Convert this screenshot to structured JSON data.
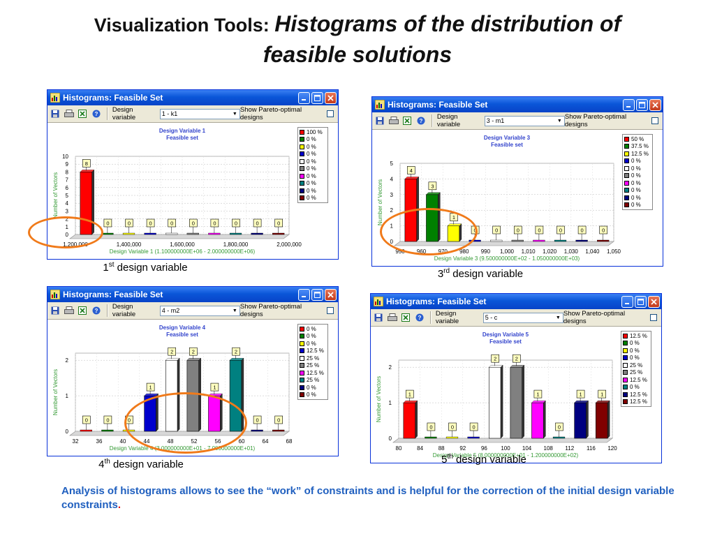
{
  "title": {
    "plain": "Visualization Tools: ",
    "italic_1": "Histograms of the distribution of",
    "italic_2": "feasible solutions"
  },
  "colors": {
    "accent_ring": "#f07a1a",
    "footer_text": "#1f5fbf",
    "footer_dot": "#ee0000",
    "axis_label": "#339933",
    "chart_title": "#3344cc"
  },
  "window_common": {
    "title": "Histograms: Feasible Set",
    "dv_label": "Design variable",
    "pareto_label": "Show Pareto-optimal designs",
    "y_axis_label": "Number of Vectors",
    "chart_subtitle": "Feasible set",
    "icons": [
      "save-icon",
      "print-icon",
      "export-excel-icon",
      "help-icon"
    ]
  },
  "windows": [
    {
      "selected": "1 - k1",
      "caption_num": "1",
      "caption_sup": "st",
      "caption_rest": " design variable",
      "chart_data": {
        "type": "bar",
        "title": "Design Variable 1",
        "subtitle": "Feasible set",
        "ylabel": "Number of Vectors",
        "xlabel": "Design Variable 1 (1.100000000E+06  -  2.000000000E+06)",
        "ylim": [
          0,
          10
        ],
        "yticks": [
          0,
          1,
          2,
          3,
          4,
          5,
          6,
          7,
          8,
          9,
          10
        ],
        "xticks": [
          "1,200,000",
          "1,400,000",
          "1,600,000",
          "1,800,000",
          "2,000,000"
        ],
        "values": [
          8,
          0,
          0,
          0,
          0,
          0,
          0,
          0,
          0,
          0
        ],
        "bar_colors": [
          "#ff0000",
          "#008000",
          "#ffff00",
          "#0000cc",
          "#ffffff",
          "#808080",
          "#ff00ff",
          "#008080",
          "#000080",
          "#800000"
        ],
        "legend": [
          "100 %",
          "0 %",
          "0 %",
          "0 %",
          "0 %",
          "0 %",
          "0 %",
          "0 %",
          "0 %",
          "0 %"
        ]
      }
    },
    {
      "selected": "3 - m1",
      "caption_num": "3",
      "caption_sup": "rd",
      "caption_rest": " design variable",
      "chart_data": {
        "type": "bar",
        "title": "Design Variable 3",
        "subtitle": "Feasible set",
        "ylabel": "Number of Vectors",
        "xlabel": "Design Variable 3 (9.500000000E+02  -  1.050000000E+03)",
        "ylim": [
          0,
          5
        ],
        "yticks": [
          0,
          1,
          2,
          3,
          4,
          5
        ],
        "xticks": [
          "950",
          "960",
          "970",
          "980",
          "990",
          "1,000",
          "1,010",
          "1,020",
          "1,030",
          "1,040",
          "1,050"
        ],
        "values": [
          4,
          3,
          1,
          0,
          0,
          0,
          0,
          0,
          0,
          0
        ],
        "bar_colors": [
          "#ff0000",
          "#008000",
          "#ffff00",
          "#0000cc",
          "#ffffff",
          "#808080",
          "#ff00ff",
          "#008080",
          "#000080",
          "#800000"
        ],
        "legend": [
          "50 %",
          "37.5 %",
          "12.5 %",
          "0 %",
          "0 %",
          "0 %",
          "0 %",
          "0 %",
          "0 %",
          "0 %"
        ]
      }
    },
    {
      "selected": "4 - m2",
      "caption_num": "4",
      "caption_sup": "th",
      "caption_rest": " design variable",
      "chart_data": {
        "type": "bar",
        "title": "Design Variable 4",
        "subtitle": "Feasible set",
        "ylabel": "Number of Vectors",
        "xlabel": "Design Variable 4 (3.000000000E+01  -  7.000000000E+01)",
        "ylim": [
          0,
          2.2
        ],
        "yticks": [
          0,
          1,
          2
        ],
        "xticks": [
          "32",
          "36",
          "40",
          "44",
          "48",
          "52",
          "56",
          "60",
          "64",
          "68"
        ],
        "values": [
          0,
          0,
          0,
          1,
          2,
          2,
          1,
          2,
          0,
          0
        ],
        "bar_colors": [
          "#ff0000",
          "#008000",
          "#ffff00",
          "#0000cc",
          "#ffffff",
          "#808080",
          "#ff00ff",
          "#008080",
          "#000080",
          "#800000"
        ],
        "legend": [
          "0 %",
          "0 %",
          "0 %",
          "12.5 %",
          "25 %",
          "25 %",
          "12.5 %",
          "25 %",
          "0 %",
          "0 %"
        ]
      }
    },
    {
      "selected": "5 - c",
      "caption_num": "5",
      "caption_sup": "th",
      "caption_rest": " design variable",
      "chart_data": {
        "type": "bar",
        "title": "Design Variable 5",
        "subtitle": "Feasible set",
        "ylabel": "Number of Vectors",
        "xlabel": "Design Variable 5 (8.000000000E+01  -  1.200000000E+02)",
        "ylim": [
          0,
          2.2
        ],
        "yticks": [
          0,
          1,
          2
        ],
        "xticks": [
          "80",
          "84",
          "88",
          "92",
          "96",
          "100",
          "104",
          "108",
          "112",
          "116",
          "120"
        ],
        "values": [
          1,
          0,
          0,
          0,
          2,
          2,
          1,
          0,
          1,
          1
        ],
        "bar_colors": [
          "#ff0000",
          "#008000",
          "#ffff00",
          "#0000cc",
          "#ffffff",
          "#808080",
          "#ff00ff",
          "#008080",
          "#000080",
          "#800000"
        ],
        "legend": [
          "12.5 %",
          "0 %",
          "0 %",
          "0 %",
          "25 %",
          "25 %",
          "12.5 %",
          "0 %",
          "12.5 %",
          "12.5 %"
        ]
      }
    }
  ],
  "footer": {
    "text": "Analysis of histograms allows to see the “work” of constraints and is helpful for the correction of the initial design variable constraints",
    "dot": "."
  }
}
